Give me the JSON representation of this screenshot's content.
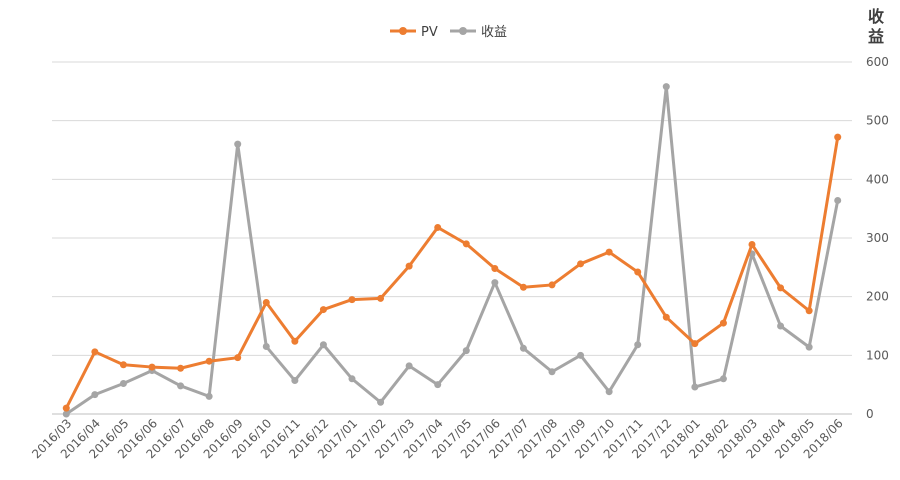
{
  "chart_data": {
    "type": "line",
    "title": "",
    "xlabel": "",
    "ylabel_right": "收益",
    "ylim": [
      0,
      600
    ],
    "yticks": [
      0,
      100,
      200,
      300,
      400,
      500,
      600
    ],
    "grid": true,
    "legend_position": "top-center",
    "categories": [
      "2016/03",
      "2016/04",
      "2016/05",
      "2016/06",
      "2016/07",
      "2016/08",
      "2016/09",
      "2016/10",
      "2016/11",
      "2016/12",
      "2017/01",
      "2017/02",
      "2017/03",
      "2017/04",
      "2017/05",
      "2017/06",
      "2017/07",
      "2017/08",
      "2017/09",
      "2017/10",
      "2017/11",
      "2017/12",
      "2018/01",
      "2018/02",
      "2018/03",
      "2018/04",
      "2018/05",
      "2018/06"
    ],
    "series": [
      {
        "name": "PV",
        "color": "#ED7D31",
        "values": [
          10,
          106,
          84,
          80,
          78,
          90,
          96,
          190,
          124,
          178,
          195,
          197,
          252,
          318,
          290,
          248,
          216,
          220,
          256,
          276,
          242,
          165,
          120,
          155,
          289,
          215,
          176,
          472
        ]
      },
      {
        "name": "收益",
        "color": "#A5A5A5",
        "values": [
          0,
          33,
          52,
          74,
          48,
          30,
          460,
          115,
          57,
          118,
          60,
          20,
          82,
          50,
          108,
          224,
          112,
          72,
          100,
          38,
          118,
          558,
          46,
          60,
          273,
          150,
          114,
          364
        ]
      }
    ]
  }
}
